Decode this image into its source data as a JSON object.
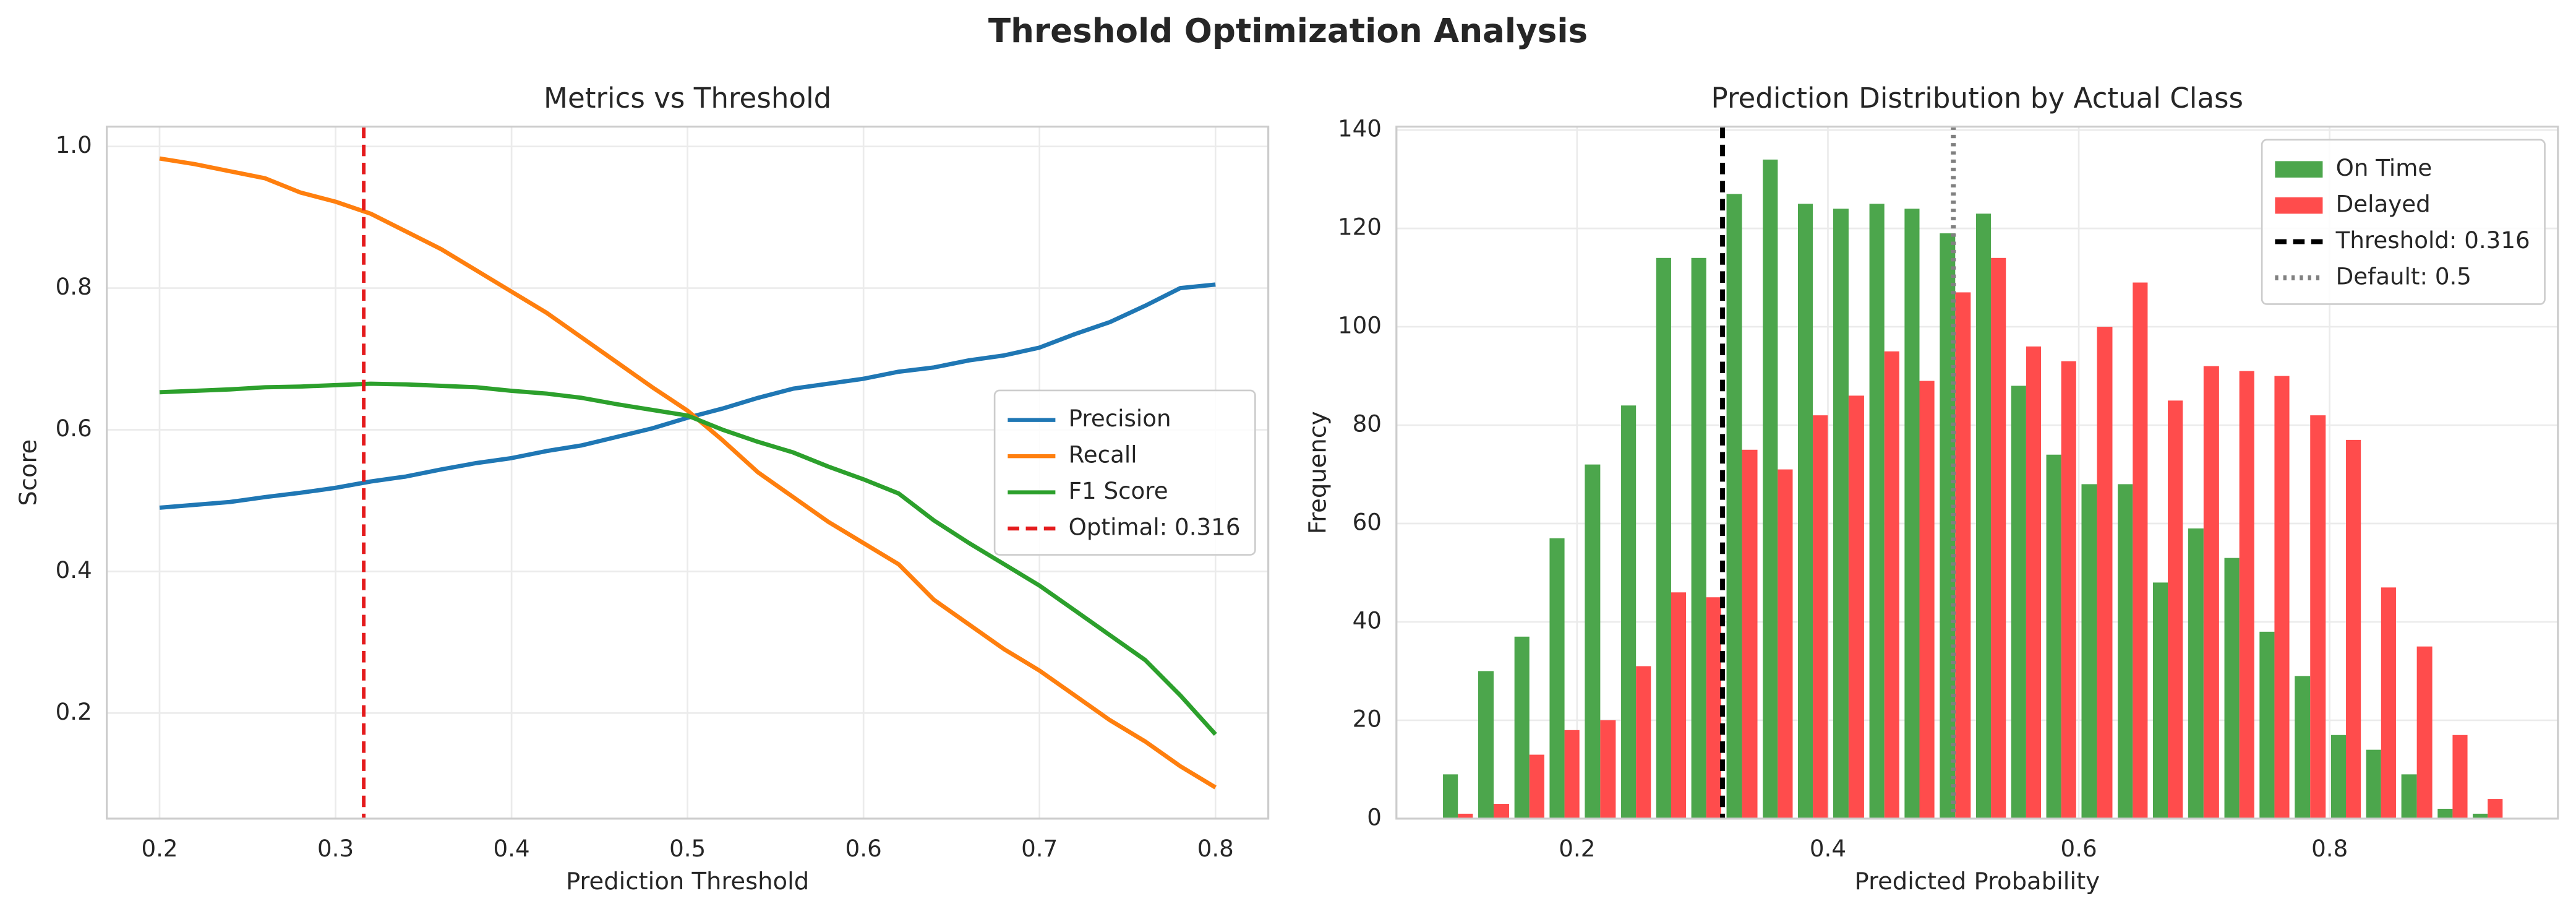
{
  "figure_title": "Threshold Optimization Analysis",
  "chart_data": [
    {
      "type": "line",
      "title": "Metrics vs Threshold",
      "xlabel": "Prediction Threshold",
      "ylabel": "Score",
      "x": [
        0.2,
        0.22,
        0.24,
        0.26,
        0.28,
        0.3,
        0.32,
        0.34,
        0.36,
        0.38,
        0.4,
        0.42,
        0.44,
        0.46,
        0.48,
        0.5,
        0.52,
        0.54,
        0.56,
        0.58,
        0.6,
        0.62,
        0.64,
        0.66,
        0.68,
        0.7,
        0.72,
        0.74,
        0.76,
        0.78,
        0.8
      ],
      "series": [
        {
          "name": "Precision",
          "color": "#1f77b4",
          "values": [
            0.49,
            0.494,
            0.498,
            0.505,
            0.511,
            0.518,
            0.527,
            0.534,
            0.544,
            0.553,
            0.56,
            0.57,
            0.578,
            0.59,
            0.602,
            0.617,
            0.63,
            0.645,
            0.658,
            0.665,
            0.672,
            0.682,
            0.688,
            0.698,
            0.705,
            0.716,
            0.735,
            0.752,
            0.775,
            0.8,
            0.805
          ]
        },
        {
          "name": "Recall",
          "color": "#ff7f0e",
          "values": [
            0.983,
            0.975,
            0.965,
            0.955,
            0.935,
            0.922,
            0.905,
            0.88,
            0.855,
            0.825,
            0.795,
            0.765,
            0.73,
            0.695,
            0.66,
            0.627,
            0.585,
            0.54,
            0.505,
            0.47,
            0.44,
            0.41,
            0.36,
            0.325,
            0.29,
            0.26,
            0.225,
            0.19,
            0.16,
            0.125,
            0.095
          ]
        },
        {
          "name": "F1 Score",
          "color": "#2ca02c",
          "values": [
            0.653,
            0.655,
            0.657,
            0.66,
            0.661,
            0.663,
            0.665,
            0.664,
            0.662,
            0.66,
            0.655,
            0.651,
            0.645,
            0.636,
            0.628,
            0.62,
            0.6,
            0.583,
            0.568,
            0.548,
            0.53,
            0.51,
            0.472,
            0.44,
            0.41,
            0.38,
            0.345,
            0.31,
            0.275,
            0.225,
            0.17
          ]
        }
      ],
      "vlines": [
        {
          "name": "Optimal: 0.316",
          "x": 0.316,
          "color": "#e41a1c",
          "style": "dashed"
        }
      ],
      "xlim": [
        0.17,
        0.83
      ],
      "ylim": [
        0.051,
        1.028
      ],
      "xticks": [
        0.2,
        0.3,
        0.4,
        0.5,
        0.6,
        0.7,
        0.8
      ],
      "yticks": [
        0.2,
        0.4,
        0.6,
        0.8,
        {
          "value": 1,
          "label": "1.0"
        }
      ],
      "grid": true,
      "legend": "center right"
    },
    {
      "type": "histogram",
      "title": "Prediction Distribution by Actual Class",
      "xlabel": "Predicted Probability",
      "ylabel": "Frequency",
      "bins": [
        0.091,
        0.119,
        0.148,
        0.176,
        0.204,
        0.233,
        0.261,
        0.289,
        0.317,
        0.346,
        0.374,
        0.402,
        0.431,
        0.459,
        0.487,
        0.516,
        0.544,
        0.572,
        0.6,
        0.629,
        0.657,
        0.685,
        0.714,
        0.742,
        0.77,
        0.799,
        0.827,
        0.855,
        0.884,
        0.912,
        0.94
      ],
      "series": [
        {
          "name": "On Time",
          "color": "#4ca64c",
          "values": [
            9,
            30,
            37,
            57,
            72,
            84,
            114,
            114,
            127,
            134,
            125,
            124,
            125,
            124,
            119,
            123,
            88,
            74,
            68,
            68,
            48,
            59,
            53,
            38,
            29,
            17,
            14,
            9,
            2,
            1
          ]
        },
        {
          "name": "Delayed",
          "color": "#ff4c4c",
          "values": [
            1,
            3,
            13,
            18,
            20,
            31,
            46,
            45,
            75,
            71,
            82,
            86,
            95,
            89,
            107,
            114,
            96,
            93,
            100,
            109,
            85,
            92,
            91,
            90,
            82,
            77,
            47,
            35,
            17,
            4
          ]
        }
      ],
      "vlines": [
        {
          "name": "Threshold: 0.316",
          "x": 0.316,
          "color": "#000000",
          "style": "dashed"
        },
        {
          "name": "Default: 0.5",
          "x": 0.5,
          "color": "#808080",
          "style": "dotted"
        }
      ],
      "xlim": [
        0.056,
        0.982
      ],
      "ylim": [
        0,
        140.7
      ],
      "xticks": [
        0.2,
        0.4,
        0.6,
        0.8
      ],
      "yticks": [
        0,
        20,
        40,
        60,
        80,
        100,
        120,
        140
      ],
      "grid": true,
      "legend": "upper right"
    }
  ]
}
